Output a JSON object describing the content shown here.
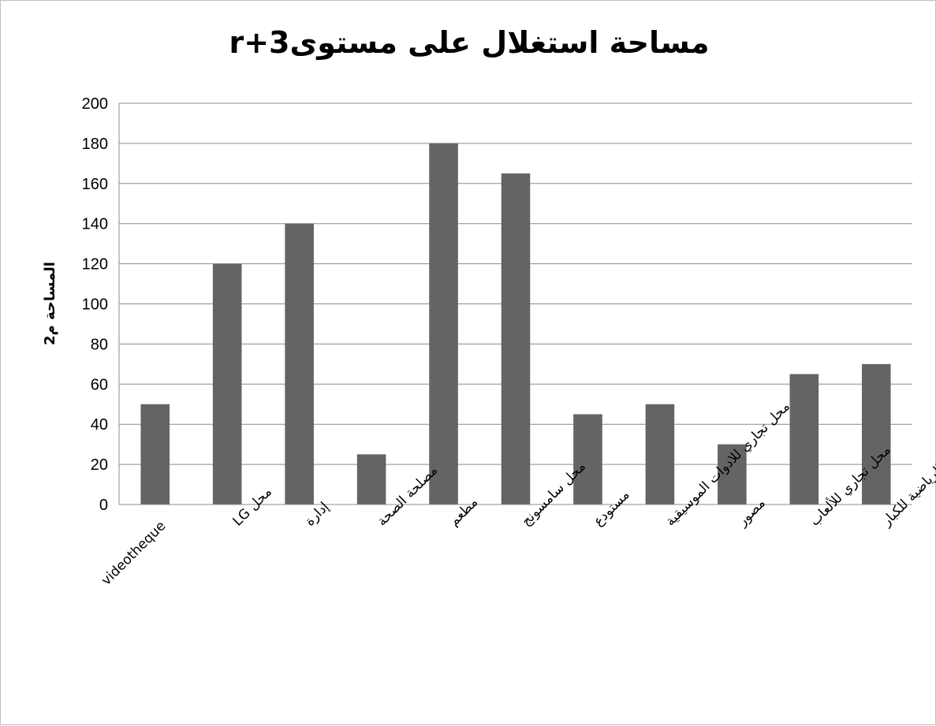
{
  "chart_data": {
    "type": "bar",
    "title": "مساحة استغلال على مستوىr+3",
    "xlabel": "",
    "ylabel": "المساحة م2",
    "ylim": [
      0,
      200
    ],
    "yticks": [
      0,
      20,
      40,
      60,
      80,
      100,
      120,
      140,
      160,
      180,
      200
    ],
    "grid": true,
    "legend": "none",
    "bar_color": "#646464",
    "categories": [
      "videotheque",
      "محل LG",
      "إدارة",
      "مصلحة الصحة",
      "مطعم",
      "محل سامسونج",
      "مستودع",
      "محل تجاري للادوات الموسيقية",
      "مصور",
      "محل تجاري للألعاب",
      "محل تجاري للألعاب الرياضية للكبار"
    ],
    "values": [
      50,
      120,
      140,
      25,
      180,
      165,
      45,
      50,
      30,
      65,
      70
    ]
  }
}
